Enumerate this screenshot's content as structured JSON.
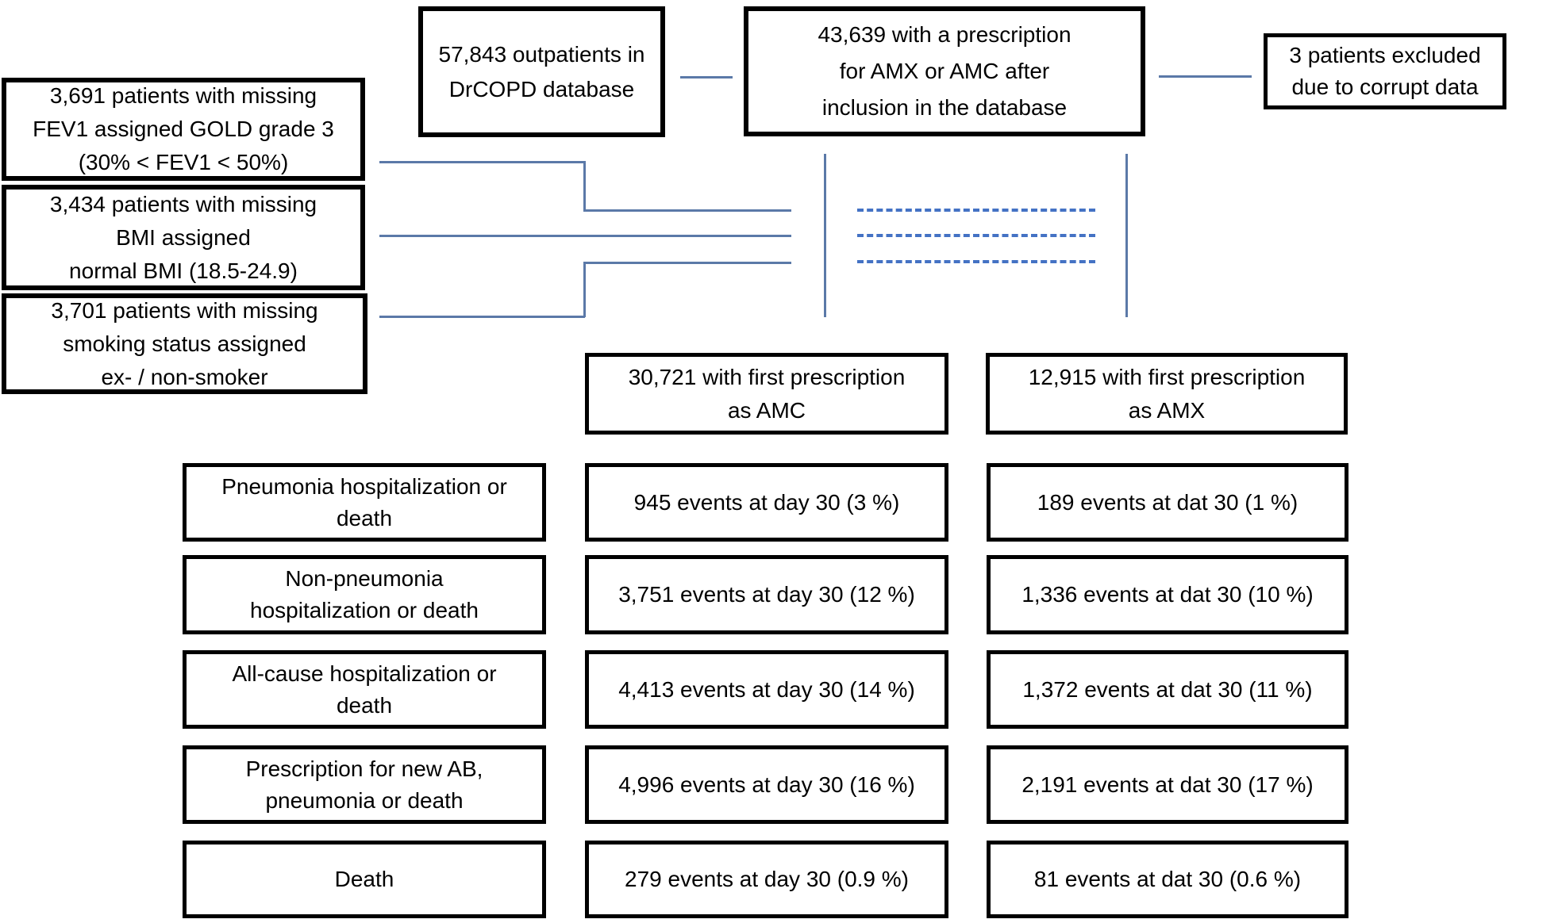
{
  "colors": {
    "connector_solid": "#5b79a8",
    "connector_dashed": "#4472c4",
    "box_border": "#000000",
    "background": "#ffffff"
  },
  "top_row": {
    "database_box": {
      "lines": [
        "57,843 outpatients in",
        "DrCOPD database"
      ]
    },
    "prescription_box": {
      "lines": [
        "43,639 with a prescription",
        "for AMX or AMC after",
        "inclusion in the database"
      ]
    },
    "excluded_box": {
      "lines": [
        "3 patients excluded",
        "due to corrupt data"
      ]
    }
  },
  "imputation_boxes": [
    {
      "lines": [
        "3,691 patients with missing",
        "FEV1 assigned GOLD grade 3",
        "(30% < FEV1 < 50%)"
      ]
    },
    {
      "lines": [
        "3,434 patients with missing",
        "BMI assigned",
        "normal BMI (18.5-24.9)"
      ]
    },
    {
      "lines": [
        "3,701 patients with missing",
        "smoking status assigned",
        "ex- / non-smoker"
      ]
    }
  ],
  "treatment_arms": {
    "amc_box": {
      "lines": [
        "30,721 with first prescription",
        "as AMC"
      ]
    },
    "amx_box": {
      "lines": [
        "12,915 with first prescription",
        "as AMX"
      ]
    }
  },
  "outcome_rows": [
    {
      "label_lines": [
        "Pneumonia hospitalization or",
        "death"
      ],
      "amc_value": "945 events at day 30 (3 %)",
      "amx_value": "189 events at dat 30 (1 %)"
    },
    {
      "label_lines": [
        "Non-pneumonia",
        "hospitalization or death"
      ],
      "amc_value": "3,751 events at day 30 (12 %)",
      "amx_value": "1,336 events at dat 30 (10 %)"
    },
    {
      "label_lines": [
        "All-cause hospitalization or",
        "death"
      ],
      "amc_value": "4,413 events at day 30 (14 %)",
      "amx_value": "1,372 events at dat 30 (11 %)"
    },
    {
      "label_lines": [
        "Prescription for new AB,",
        "pneumonia or death"
      ],
      "amc_value": "4,996 events at day 30 (16 %)",
      "amx_value": "2,191 events at dat 30 (17 %)"
    },
    {
      "label_lines": [
        "Death"
      ],
      "amc_value": "279 events at day 30 (0.9 %)",
      "amx_value": "81 events at dat 30 (0.6 %)"
    }
  ]
}
